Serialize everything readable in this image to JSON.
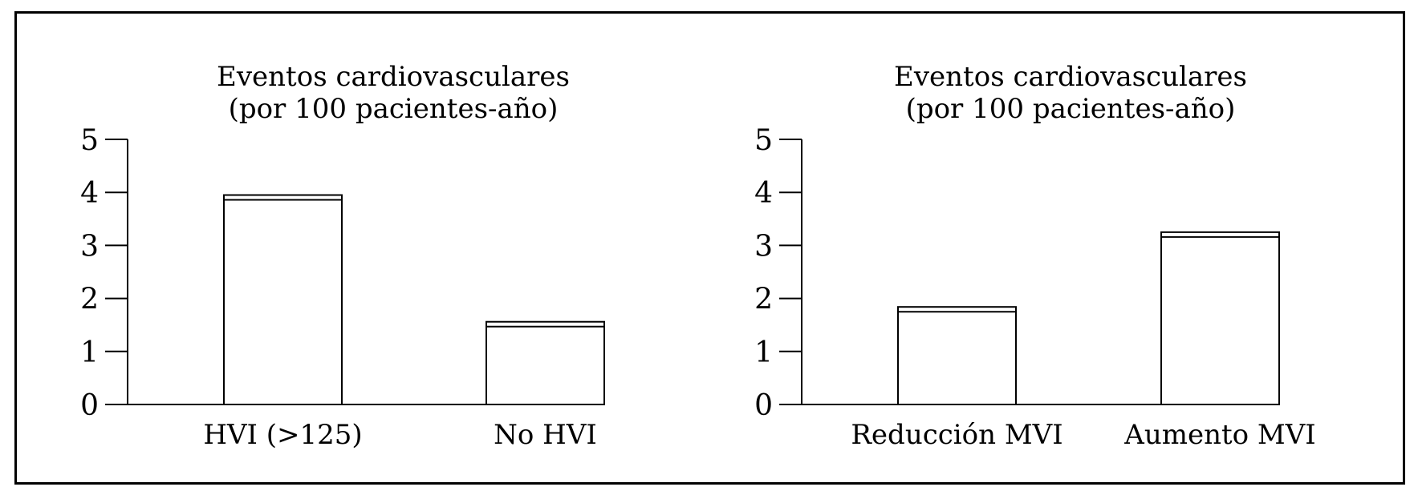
{
  "chart_data": [
    {
      "type": "bar",
      "title_lines": [
        "Eventos cardiovasculares",
        "(por 100 pacientes-año)"
      ],
      "categories": [
        "HVI (>125)",
        "No HVI"
      ],
      "values": [
        3.95,
        1.56
      ],
      "ylim": [
        0,
        5
      ],
      "yticks": [
        "0",
        "1",
        "2",
        "3",
        "4",
        "5"
      ],
      "grid": false,
      "legend": "none"
    },
    {
      "type": "bar",
      "title_lines": [
        "Eventos cardiovasculares",
        "(por 100 pacientes-año)"
      ],
      "categories": [
        "Reducción MVI",
        "Aumento MVI"
      ],
      "values": [
        1.84,
        3.25
      ],
      "ylim": [
        0,
        5
      ],
      "yticks": [
        "0",
        "1",
        "2",
        "3",
        "4",
        "5"
      ],
      "grid": false,
      "legend": "none"
    }
  ]
}
